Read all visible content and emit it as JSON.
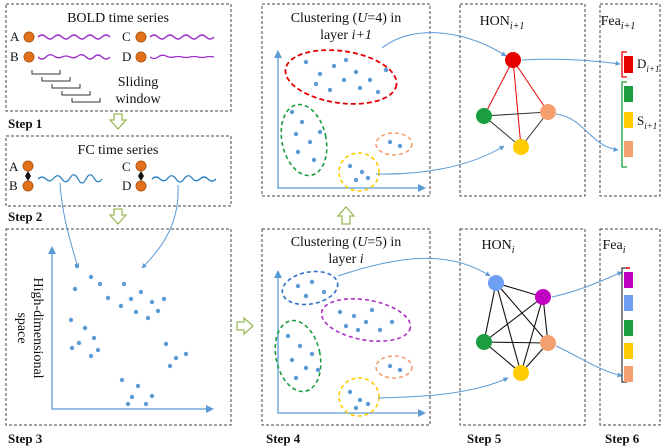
{
  "panels": {
    "bold": {
      "title": "BOLD time series",
      "nodes": [
        "A",
        "B",
        "C",
        "D"
      ],
      "window_line1": "Sliding",
      "window_line2": "window"
    },
    "fc": {
      "title": "FC time series",
      "nodes": [
        "A",
        "B",
        "C",
        "D"
      ]
    },
    "highdim": {
      "ylabel_line1": "High-dimensional",
      "ylabel_line2": "space"
    },
    "cluster_top": {
      "title_a": "Clustering (",
      "title_var": "U",
      "title_b": "=4) in",
      "title_line2_a": "layer ",
      "title_line2_var": "i+1"
    },
    "cluster_bottom": {
      "title_a": "Clustering (",
      "title_var": "U",
      "title_b": "=5) in",
      "title_line2_a": "layer ",
      "title_line2_var": "i"
    },
    "hon_top": {
      "label": "HON",
      "sub": "i+1"
    },
    "hon_bottom": {
      "label": "HON",
      "sub": "i"
    },
    "fea_top": {
      "label": "Fea",
      "sub": "i+1",
      "d_label": "D",
      "d_sub": "i+1",
      "s_label": "S",
      "s_sub": "i+1"
    },
    "fea_bottom": {
      "label": "Fea",
      "sub": "i"
    }
  },
  "steps": [
    "Step 1",
    "Step 2",
    "Step 3",
    "Step 4",
    "Step 5",
    "Step 6"
  ],
  "colors": {
    "node_orange": "#e2711d",
    "dot_blue": "#5b9bd5",
    "wave_purple": "#9b30c8",
    "wave_blue": "#2e86c1",
    "arrow_green": "#9bbb59",
    "red": "#e60000",
    "green": "#1a9e3f",
    "salmon": "#f4a071",
    "yellow": "#ffcc00",
    "blue_node": "#6f9ef5",
    "magenta": "#c000c0",
    "dash_blue": "#2e6fc8",
    "dash_purple": "#b030c8"
  }
}
